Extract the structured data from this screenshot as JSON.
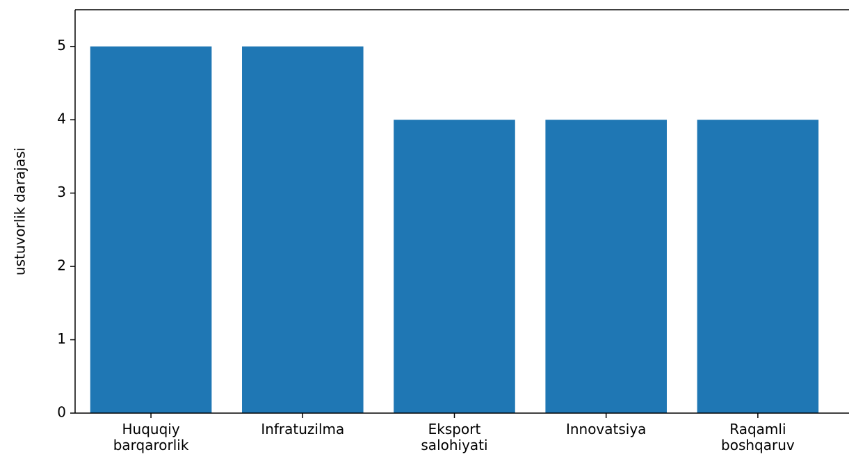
{
  "chart_data": {
    "type": "bar",
    "y_label": "ustuvorlik darajasi",
    "categories": [
      "Huquqiy\nbarqarorlik",
      "Infratuzilma",
      "Eksport\nsalohiyati",
      "Innovatsiya",
      "Raqamli\nboshqaruv"
    ],
    "values": [
      5,
      5,
      4,
      4,
      4
    ],
    "color": "#1f77b4",
    "ylim": [
      0,
      5.5
    ],
    "yticks": [
      0,
      1,
      2,
      3,
      4,
      5
    ],
    "grid": false
  }
}
